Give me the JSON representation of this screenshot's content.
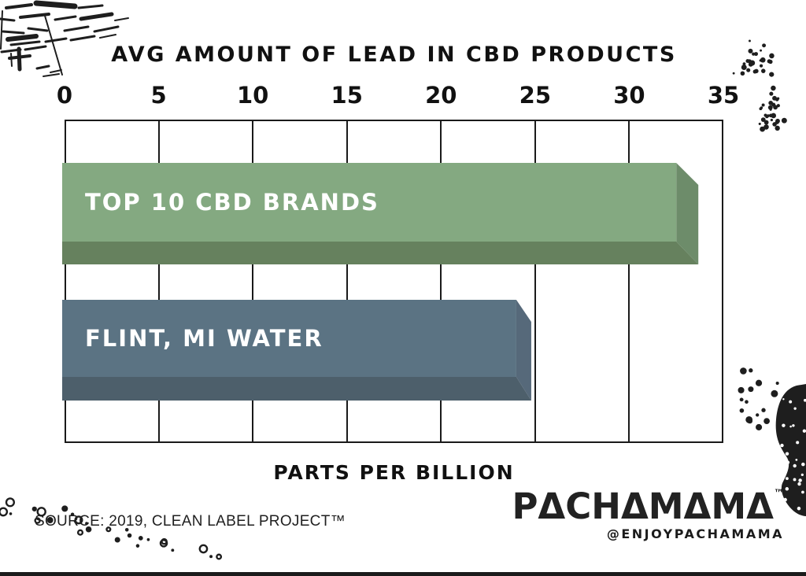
{
  "title": "AVG AMOUNT OF LEAD IN CBD PRODUCTS",
  "source": "SOURCE: 2019, CLEAN LABEL PROJECT™",
  "logo": {
    "text": "PACHAMAMA",
    "display": "PΔCHΔMΔMΔ",
    "tm": "™",
    "handle": "@ENJOYPACHAMAMA"
  },
  "colors": {
    "background": "#ffffff",
    "ink": "#1e1e1e",
    "frame": "#1a1a1a"
  },
  "chart_data": {
    "type": "bar",
    "orientation": "horizontal",
    "title": "AVG AMOUNT OF LEAD IN CBD PRODUCTS",
    "xlabel": "PARTS PER BILLION",
    "categories": [
      "TOP 10 CBD BRANDS",
      "FLINT, MI WATER"
    ],
    "values": [
      32.5,
      24
    ],
    "xlim": [
      0,
      35
    ],
    "xticks": [
      0,
      5,
      10,
      15,
      20,
      25,
      30,
      35
    ],
    "grid": true,
    "legend": false,
    "label_color": "#ffffff",
    "bar_colors": [
      {
        "face": "#84A981",
        "side": "#6D8C6A",
        "shadow": "#66815E"
      },
      {
        "face": "#5B7383",
        "side": "#56697A",
        "shadow": "#4D5F6B"
      }
    ]
  }
}
